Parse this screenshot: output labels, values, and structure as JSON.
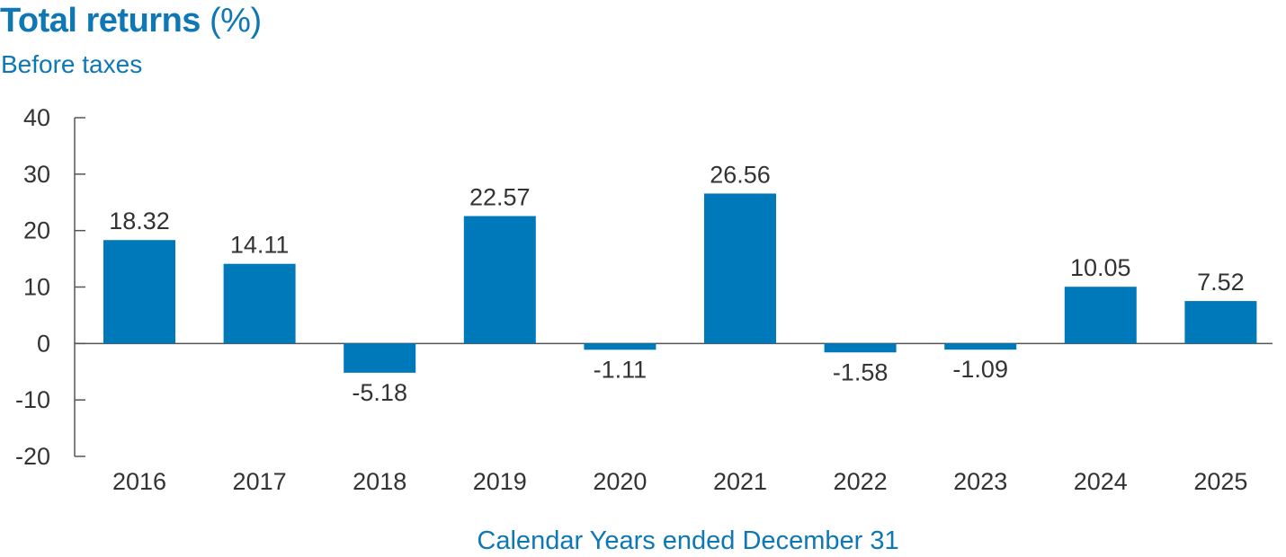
{
  "title": "Total returns",
  "title_unit": "(%)",
  "subtitle": "Before taxes",
  "colors": {
    "bar": "#0079bb",
    "title": "#0e77b5",
    "axis": "#555555",
    "text": "#333333"
  },
  "chart_data": {
    "type": "bar",
    "title": "Total returns (%)",
    "subtitle": "Before taxes",
    "xlabel": "Calendar Years ended December 31",
    "ylabel": "",
    "categories": [
      "2016",
      "2017",
      "2018",
      "2019",
      "2020",
      "2021",
      "2022",
      "2023",
      "2024",
      "2025"
    ],
    "values": [
      18.32,
      14.11,
      -5.18,
      22.57,
      -1.11,
      26.56,
      -1.58,
      -1.09,
      10.05,
      7.52
    ],
    "value_labels": [
      "18.32",
      "14.11",
      "-5.18",
      "22.57",
      "-1.11",
      "26.56",
      "-1.58",
      "-1.09",
      "10.05",
      "7.52"
    ],
    "ylim": [
      -20,
      40
    ],
    "yticks": [
      40,
      30,
      20,
      10,
      0,
      -10,
      -20
    ],
    "ytick_labels": [
      "40",
      "30",
      "20",
      "10",
      "0",
      "-10",
      "-20"
    ],
    "grid": false,
    "legend": "none"
  }
}
